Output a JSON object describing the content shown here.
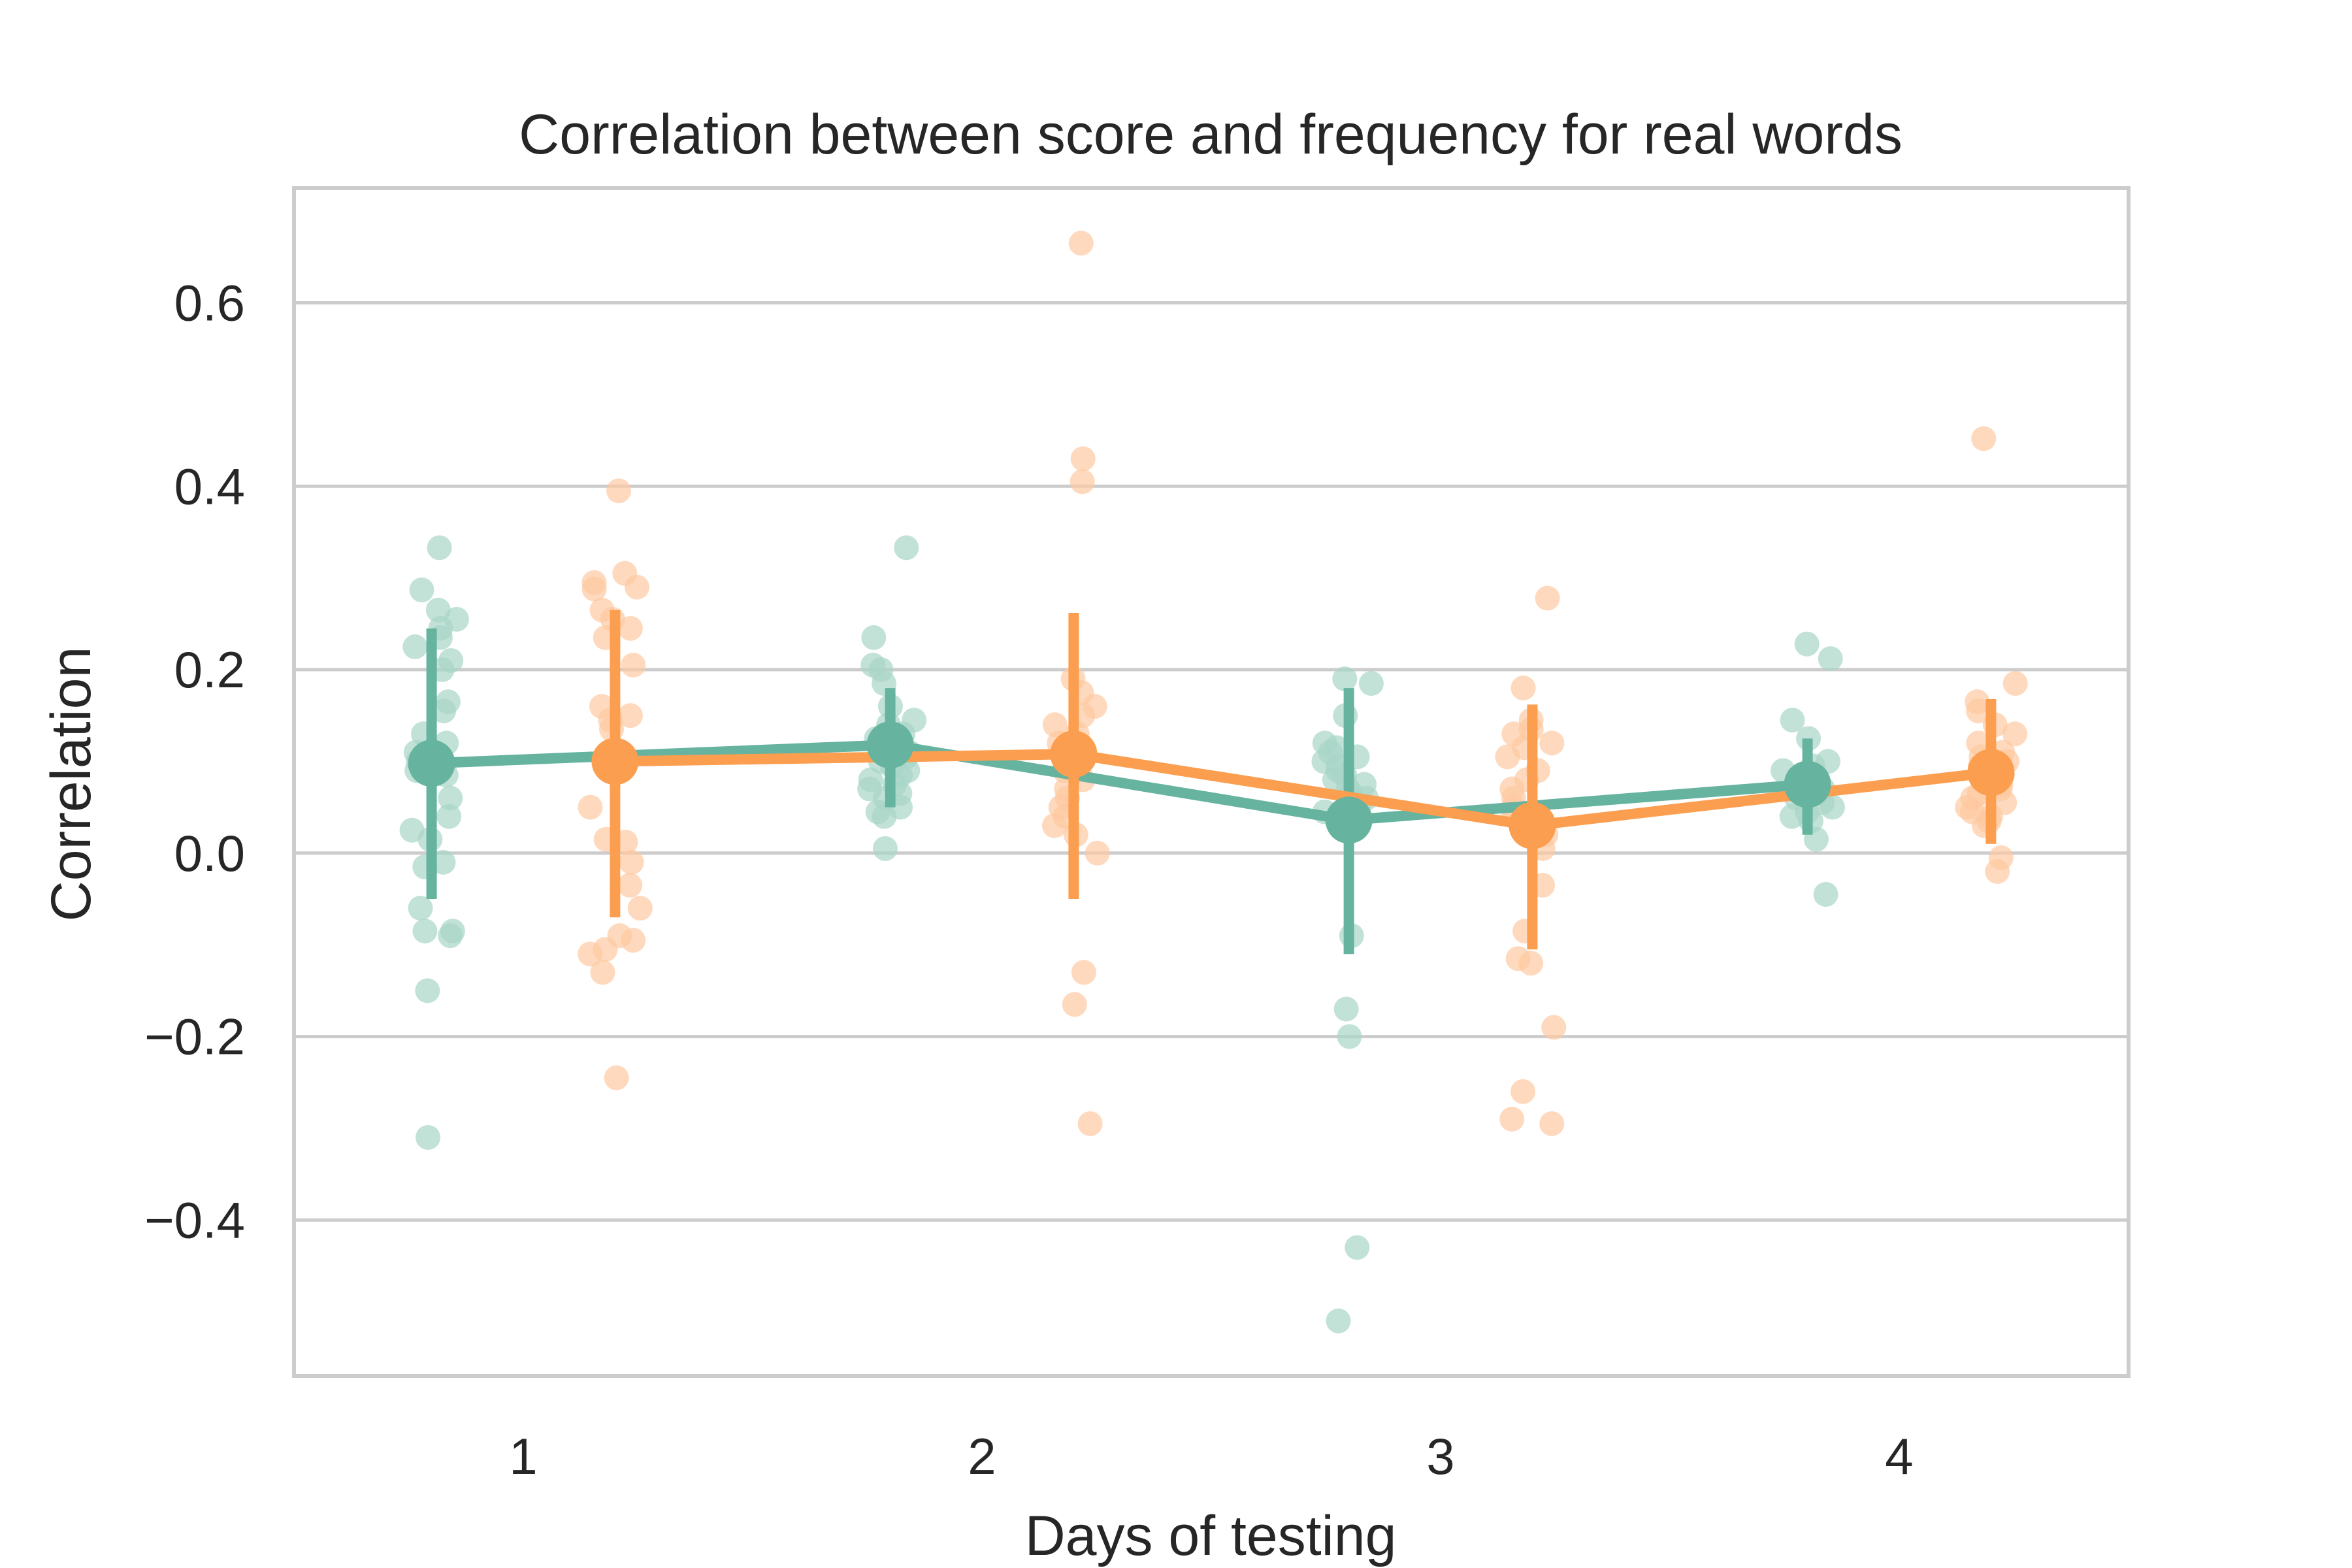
{
  "chart_data": {
    "type": "scatter",
    "title": "Correlation between score and frequency for real words",
    "xlabel": "Days of testing",
    "ylabel": "Correlation",
    "categories": [
      "1",
      "2",
      "3",
      "4"
    ],
    "yticks": [
      "0.6",
      "0.4",
      "0.2",
      "0.0",
      "−0.2",
      "−0.4"
    ],
    "ytick_values": [
      0.6,
      0.4,
      0.2,
      0.0,
      -0.2,
      -0.4
    ],
    "ylim": [
      -0.57,
      0.725
    ],
    "grid": true,
    "legend": "none",
    "series": [
      {
        "color": "#66b3a0",
        "points_color": "#a8d5c8",
        "means": [
          0.098,
          0.118,
          0.036,
          0.075
        ],
        "ci_low": [
          -0.05,
          0.05,
          -0.11,
          0.02
        ],
        "ci_high": [
          0.245,
          0.18,
          0.18,
          0.125
        ],
        "points": [
          [
            0.333,
            0.287,
            0.265,
            0.255,
            0.245,
            0.235,
            0.225,
            0.21,
            0.2,
            0.165,
            0.155,
            0.13,
            0.12,
            0.11,
            0.105,
            0.1,
            0.09,
            0.085,
            0.06,
            0.04,
            0.025,
            0.015,
            -0.01,
            -0.015,
            -0.06,
            -0.085,
            -0.085,
            -0.09,
            -0.15,
            -0.31
          ],
          [
            0.333,
            0.235,
            0.205,
            0.2,
            0.185,
            0.16,
            0.145,
            0.14,
            0.13,
            0.125,
            0.115,
            0.11,
            0.105,
            0.1,
            0.095,
            0.09,
            0.085,
            0.08,
            0.075,
            0.07,
            0.065,
            0.06,
            0.05,
            0.045,
            0.04,
            0.005
          ],
          [
            0.19,
            0.185,
            0.15,
            0.12,
            0.115,
            0.11,
            0.105,
            0.1,
            0.095,
            0.09,
            0.085,
            0.08,
            0.075,
            0.07,
            0.065,
            0.06,
            0.055,
            0.05,
            0.045,
            -0.09,
            -0.17,
            -0.2,
            -0.43,
            -0.51
          ],
          [
            0.228,
            0.212,
            0.145,
            0.125,
            0.1,
            0.095,
            0.09,
            0.085,
            0.08,
            0.075,
            0.07,
            0.065,
            0.06,
            0.055,
            0.05,
            0.045,
            0.04,
            0.035,
            0.015,
            -0.045
          ]
        ]
      },
      {
        "color": "#fc9e4f",
        "points_color": "#fdc9a1",
        "means": [
          0.1,
          0.108,
          0.03,
          0.088
        ],
        "ci_low": [
          -0.07,
          -0.05,
          -0.105,
          0.01
        ],
        "ci_high": [
          0.265,
          0.262,
          0.162,
          0.168
        ],
        "points": [
          [
            0.395,
            0.305,
            0.295,
            0.29,
            0.288,
            0.265,
            0.255,
            0.245,
            0.235,
            0.205,
            0.16,
            0.15,
            0.145,
            0.135,
            0.05,
            0.015,
            0.012,
            -0.01,
            -0.035,
            -0.06,
            -0.09,
            -0.095,
            -0.105,
            -0.11,
            -0.13,
            -0.245
          ],
          [
            0.665,
            0.43,
            0.405,
            0.19,
            0.175,
            0.16,
            0.15,
            0.14,
            0.13,
            0.12,
            0.11,
            0.1,
            0.09,
            0.08,
            0.07,
            0.06,
            0.05,
            0.04,
            0.03,
            0.02,
            0.0,
            -0.13,
            -0.165,
            -0.295
          ],
          [
            0.278,
            0.18,
            0.145,
            0.135,
            0.13,
            0.12,
            0.115,
            0.105,
            0.09,
            0.08,
            0.07,
            0.06,
            0.05,
            0.04,
            0.02,
            0.005,
            -0.035,
            -0.085,
            -0.115,
            -0.12,
            -0.19,
            -0.26,
            -0.29,
            -0.295
          ],
          [
            0.452,
            0.185,
            0.165,
            0.155,
            0.14,
            0.13,
            0.12,
            0.11,
            0.105,
            0.1,
            0.095,
            0.09,
            0.085,
            0.08,
            0.075,
            0.07,
            0.065,
            0.06,
            0.055,
            0.05,
            0.045,
            0.04,
            0.035,
            0.03,
            -0.005,
            -0.02
          ]
        ]
      }
    ]
  }
}
